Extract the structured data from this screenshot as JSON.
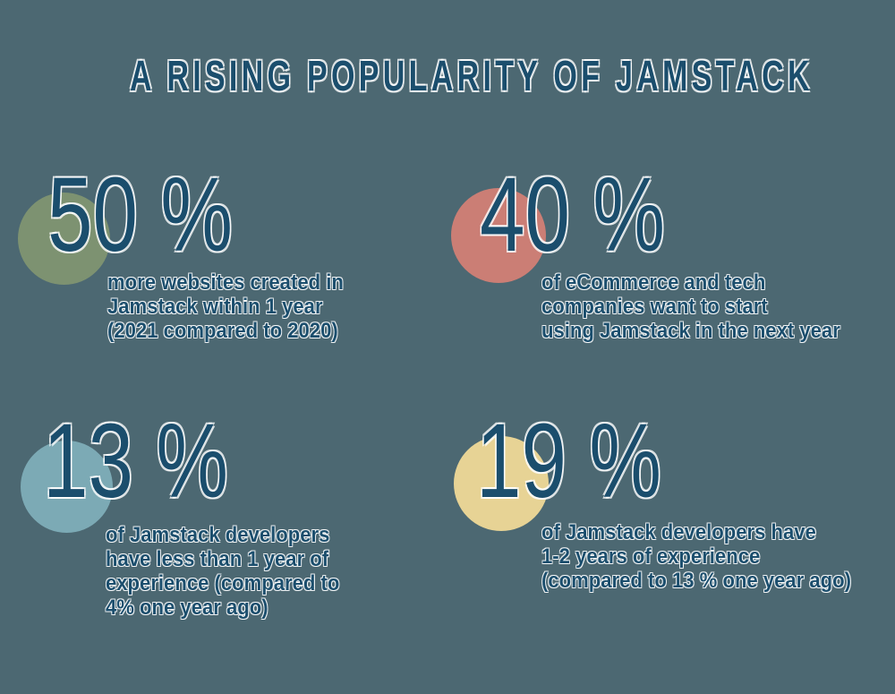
{
  "colors": {
    "background": "#4C6872",
    "text": "#1B4E6D",
    "halo": "#FFFFFF"
  },
  "title": "A RISING POPULARITY OF JAMSTACK",
  "stats": [
    {
      "value": "50 %",
      "circle_color": "#7D9271",
      "description_lines": [
        "more websites created in",
        "Jamstack within 1 year",
        "(2021 compared to 2020)"
      ]
    },
    {
      "value": "40 %",
      "circle_color": "#CB7E75",
      "description_lines": [
        "of eCommerce and tech",
        "companies want to start",
        "using Jamstack in the next year"
      ]
    },
    {
      "value": "13 %",
      "circle_color": "#7CAAB5",
      "description_lines": [
        "of Jamstack developers",
        "have less than 1 year of",
        "experience (compared to",
        "4% one year ago)"
      ]
    },
    {
      "value": "19 %",
      "circle_color": "#E7D395",
      "description_lines": [
        "of Jamstack developers have",
        "1-2 years of experience",
        "(compared to 13 % one year ago)"
      ]
    }
  ],
  "chart_data": {
    "type": "table",
    "title": "A RISING POPULARITY OF JAMSTACK",
    "unit": "percent",
    "values": [
      50,
      40,
      13,
      19
    ],
    "categories": [
      "more websites created in Jamstack within 1 year (2021 compared to 2020)",
      "of eCommerce and tech companies want to start using Jamstack in the next year",
      "of Jamstack developers have less than 1 year of experience (compared to 4% one year ago)",
      "of Jamstack developers have 1-2 years of experience (compared to 13 % one year ago)"
    ]
  }
}
